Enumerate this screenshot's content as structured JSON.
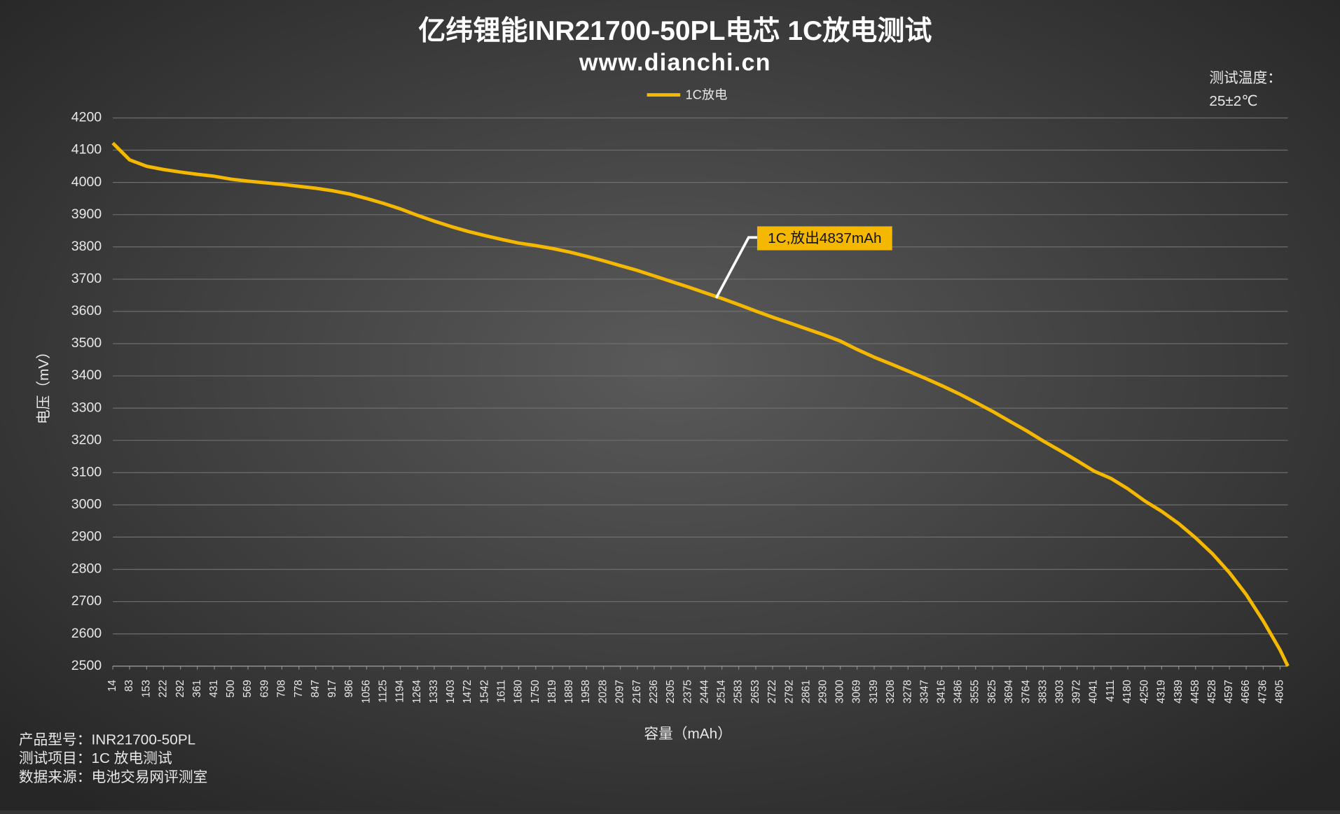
{
  "chart_data": {
    "type": "line",
    "title": "亿纬锂能INR21700-50PL电芯 1C放电测试",
    "subtitle": "www.dianchi.cn",
    "x_label": "容量（mAh）",
    "y_label": "电压（mV）",
    "annotation": "1C,放出4837mAh",
    "notes": [
      "测试温度：",
      "25±2℃"
    ],
    "footer": [
      "产品型号：INR21700-50PL",
      "测试项目：1C 放电测试",
      "数据来源：电池交易网评测室"
    ],
    "x": [
      14,
      83,
      153,
      222,
      292,
      361,
      431,
      500,
      569,
      639,
      708,
      778,
      847,
      917,
      986,
      1056,
      1125,
      1194,
      1264,
      1333,
      1403,
      1472,
      1542,
      1611,
      1680,
      1750,
      1819,
      1889,
      1958,
      2028,
      2097,
      2167,
      2236,
      2305,
      2375,
      2444,
      2514,
      2583,
      2653,
      2722,
      2792,
      2861,
      2930,
      3000,
      3069,
      3139,
      3208,
      3278,
      3347,
      3416,
      3486,
      3555,
      3625,
      3694,
      3764,
      3833,
      3903,
      3972,
      4041,
      4111,
      4180,
      4250,
      4319,
      4389,
      4458,
      4528,
      4597,
      4666,
      4736,
      4805,
      4837
    ],
    "series": [
      {
        "name": "1C放电",
        "color": "#f5b800",
        "values": [
          4122,
          4070,
          4050,
          4040,
          4032,
          4025,
          4019,
          4010,
          4004,
          3999,
          3994,
          3988,
          3982,
          3974,
          3964,
          3950,
          3935,
          3918,
          3898,
          3880,
          3863,
          3848,
          3835,
          3823,
          3812,
          3804,
          3795,
          3784,
          3771,
          3757,
          3742,
          3727,
          3710,
          3693,
          3676,
          3658,
          3640,
          3621,
          3601,
          3582,
          3564,
          3546,
          3528,
          3508,
          3482,
          3458,
          3437,
          3415,
          3393,
          3370,
          3345,
          3318,
          3290,
          3260,
          3230,
          3198,
          3168,
          3137,
          3105,
          3082,
          3050,
          3012,
          2980,
          2942,
          2898,
          2848,
          2790,
          2722,
          2640,
          2550,
          2500
        ]
      }
    ],
    "xlim": [
      14,
      4837
    ],
    "xticks": [
      14,
      83,
      153,
      222,
      292,
      361,
      431,
      500,
      569,
      639,
      708,
      778,
      847,
      917,
      986,
      1056,
      1125,
      1194,
      1264,
      1333,
      1403,
      1472,
      1542,
      1611,
      1680,
      1750,
      1819,
      1889,
      1958,
      2028,
      2097,
      2167,
      2236,
      2305,
      2375,
      2444,
      2514,
      2583,
      2653,
      2722,
      2792,
      2861,
      2930,
      3000,
      3069,
      3139,
      3208,
      3278,
      3347,
      3416,
      3486,
      3555,
      3625,
      3694,
      3764,
      3833,
      3903,
      3972,
      4041,
      4111,
      4180,
      4250,
      4319,
      4389,
      4458,
      4528,
      4597,
      4666,
      4736,
      4805
    ],
    "ylim": [
      2500,
      4200
    ],
    "yticks": [
      2500,
      2600,
      2700,
      2800,
      2900,
      3000,
      3100,
      3200,
      3300,
      3400,
      3500,
      3600,
      3700,
      3800,
      3900,
      4000,
      4100,
      4200
    ],
    "grid": true
  }
}
